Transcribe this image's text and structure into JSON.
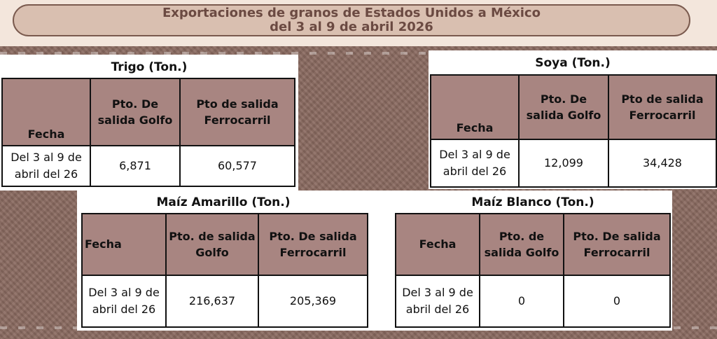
{
  "header": {
    "line1": "Exportaciones de granos de Estados Unidos a México",
    "line2": "del  3 al 9 de abril 2026"
  },
  "tables": {
    "trigo": {
      "title": "Trigo  (Ton.)",
      "col_fecha": "Fecha",
      "col_golfo": "Pto. De salida Golfo",
      "col_ferro": "Pto de salida Ferrocarril",
      "fecha": "Del 3 al 9 de abril del 26",
      "golfo": "6,871",
      "ferro": "60,577"
    },
    "soya": {
      "title": "Soya  (Ton.)",
      "col_fecha": "Fecha",
      "col_golfo": "Pto. De salida Golfo",
      "col_ferro": "Pto de salida Ferrocarril",
      "fecha": "Del 3 al 9 de abril del 26",
      "golfo": "12,099",
      "ferro": "34,428"
    },
    "maiz_amarillo": {
      "title": "Maíz Amarillo (Ton.)",
      "col_fecha": "Fecha",
      "col_golfo": "Pto. de salida Golfo",
      "col_ferro": "Pto. De salida Ferrocarril",
      "fecha": "Del 3 al 9 de abril del 26",
      "golfo": "216,637",
      "ferro": "205,369"
    },
    "maiz_blanco": {
      "title": "Maíz Blanco (Ton.)",
      "col_fecha": "Fecha",
      "col_golfo": "Pto. de salida Golfo",
      "col_ferro": "Pto. De salida Ferrocarril",
      "fecha": "Del 3 al 9 de abril del 26",
      "golfo": "0",
      "ferro": "0"
    }
  },
  "colors": {
    "header_bg": "#d9bfb0",
    "header_text": "#6b4a42",
    "table_header_bg": "#a88581",
    "texture_bg": "#8a6a60"
  }
}
